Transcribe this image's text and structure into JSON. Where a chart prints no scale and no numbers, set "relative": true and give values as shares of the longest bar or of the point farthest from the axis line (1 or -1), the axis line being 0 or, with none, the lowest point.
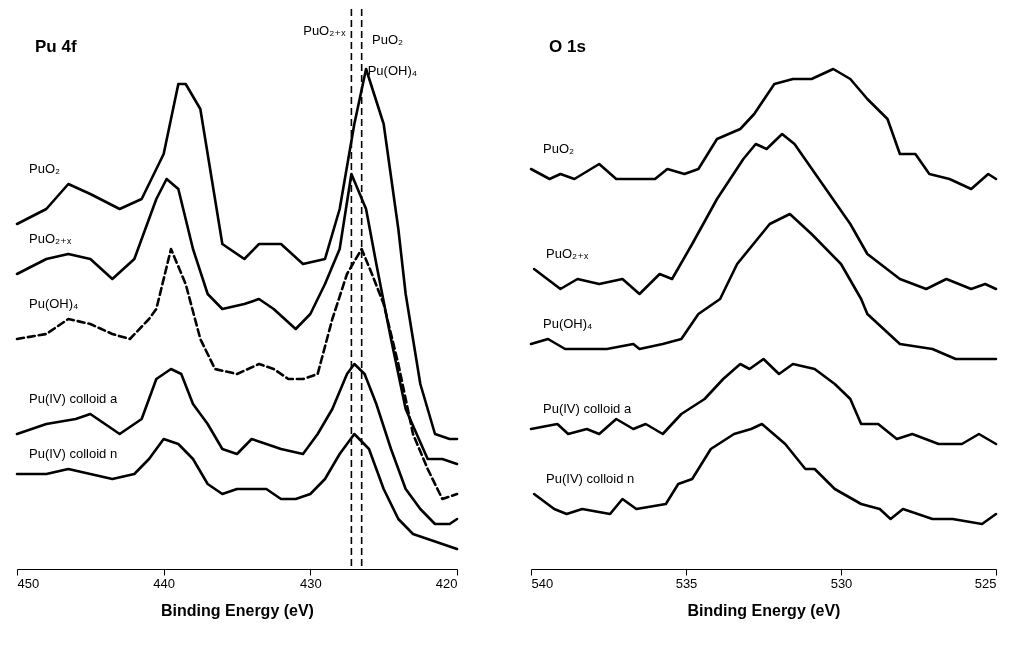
{
  "chart_data": [
    {
      "type": "line",
      "title": "Pu   4f",
      "xlabel": "Binding Energy (eV)",
      "relative": true,
      "xlim": [
        450,
        420
      ],
      "xticks": [
        450,
        440,
        430,
        420
      ],
      "grid": false,
      "legend": false,
      "marker": "none",
      "line_style": "solid",
      "series": [
        {
          "name": "PuO₂",
          "color": "#000000",
          "x": [
            450,
            448,
            446.5,
            445,
            443,
            441.5,
            440,
            439,
            438.5,
            437.5,
            436,
            434.5,
            433.5,
            432,
            430.5,
            429,
            428,
            427,
            426.2,
            425,
            424,
            423.5,
            422.5,
            421.5,
            420.5,
            420
          ],
          "values": [
            0.69,
            0.72,
            0.77,
            0.75,
            0.72,
            0.74,
            0.83,
            0.97,
            0.97,
            0.92,
            0.65,
            0.62,
            0.65,
            0.65,
            0.61,
            0.62,
            0.72,
            0.89,
            1.0,
            0.89,
            0.68,
            0.55,
            0.37,
            0.27,
            0.26,
            0.26
          ]
        },
        {
          "name": "PuO₂₊ₓ",
          "color": "#000000",
          "x": [
            450,
            448,
            446.5,
            445,
            443.5,
            442,
            440.5,
            439.8,
            439,
            438,
            437,
            436,
            434.5,
            433.5,
            432.5,
            431,
            430,
            429,
            428,
            427.2,
            426.2,
            425.5,
            424.5,
            423.5,
            422,
            421,
            420
          ],
          "values": [
            0.59,
            0.62,
            0.63,
            0.62,
            0.58,
            0.62,
            0.74,
            0.78,
            0.76,
            0.64,
            0.55,
            0.52,
            0.53,
            0.54,
            0.52,
            0.48,
            0.51,
            0.57,
            0.64,
            0.79,
            0.72,
            0.61,
            0.46,
            0.32,
            0.22,
            0.22,
            0.21
          ]
        },
        {
          "name": "Pu(OH)₄",
          "color": "#000000",
          "line_style": "dashed",
          "x": [
            450,
            448,
            446.5,
            445,
            443.5,
            442.3,
            441,
            440.5,
            439.5,
            438.5,
            437.5,
            436.5,
            435,
            433.5,
            432.5,
            431.5,
            430.5,
            429.5,
            428.5,
            427.5,
            426.5,
            425.8,
            425,
            424,
            423,
            422,
            421,
            420
          ],
          "values": [
            0.46,
            0.47,
            0.5,
            0.49,
            0.47,
            0.46,
            0.5,
            0.52,
            0.64,
            0.57,
            0.46,
            0.4,
            0.39,
            0.41,
            0.4,
            0.38,
            0.38,
            0.39,
            0.5,
            0.59,
            0.64,
            0.59,
            0.53,
            0.41,
            0.27,
            0.2,
            0.14,
            0.15
          ]
        },
        {
          "name": "Pu(IV) colloid a",
          "color": "#000000",
          "x": [
            450,
            448,
            446,
            445,
            444,
            443,
            441.5,
            440.5,
            439.5,
            438.8,
            438,
            437,
            436,
            435,
            434,
            433,
            432,
            430.5,
            429.5,
            428.5,
            427.5,
            427,
            426.3,
            425.5,
            424.5,
            423.5,
            422.5,
            421.5,
            420.5,
            420
          ],
          "values": [
            0.27,
            0.29,
            0.3,
            0.31,
            0.29,
            0.27,
            0.3,
            0.38,
            0.4,
            0.39,
            0.33,
            0.29,
            0.24,
            0.23,
            0.26,
            0.25,
            0.24,
            0.23,
            0.27,
            0.32,
            0.39,
            0.41,
            0.39,
            0.33,
            0.24,
            0.16,
            0.12,
            0.09,
            0.09,
            0.1
          ]
        },
        {
          "name": "Pu(IV) colloid n",
          "color": "#000000",
          "x": [
            450,
            448,
            446.5,
            445,
            443.5,
            442,
            441,
            440,
            439,
            438,
            437,
            436,
            435,
            434,
            433,
            432,
            431,
            430,
            429,
            428,
            427,
            426,
            425,
            424,
            423,
            422,
            421,
            420
          ],
          "values": [
            0.19,
            0.19,
            0.2,
            0.19,
            0.18,
            0.19,
            0.22,
            0.26,
            0.25,
            0.22,
            0.17,
            0.15,
            0.16,
            0.16,
            0.16,
            0.14,
            0.14,
            0.15,
            0.18,
            0.23,
            0.27,
            0.24,
            0.16,
            0.1,
            0.07,
            0.06,
            0.05,
            0.04
          ]
        }
      ],
      "ref_lines": [
        {
          "axis": "x",
          "value": 427.2,
          "label": "PuO₂₊ₓ",
          "line_style": "dashed",
          "color": "#000000"
        },
        {
          "axis": "x",
          "value": 426.5,
          "label": "Pu(OH)₄",
          "line_style": "dashed",
          "color": "#000000"
        }
      ],
      "annotations": [
        {
          "text": "PuO₂",
          "x": 426.2,
          "y": 1.0
        }
      ]
    },
    {
      "type": "line",
      "title": "O   1s",
      "xlabel": "Binding Energy (eV)",
      "relative": true,
      "xlim": [
        540,
        525
      ],
      "xticks": [
        540,
        535,
        530,
        525
      ],
      "grid": false,
      "legend": false,
      "marker": "none",
      "line_style": "solid",
      "series": [
        {
          "name": "PuO₂",
          "color": "#000000",
          "x": [
            540,
            539.4,
            539.05,
            538.6,
            537.8,
            537.25,
            536.5,
            536,
            535.6,
            535.05,
            534.6,
            534,
            533.25,
            532.8,
            532.15,
            531.55,
            530.95,
            530.25,
            529.7,
            529.15,
            528.5,
            528.1,
            527.6,
            527.15,
            526.5,
            525.8,
            525.25,
            525
          ],
          "values": [
            0.8,
            0.78,
            0.79,
            0.78,
            0.81,
            0.78,
            0.78,
            0.78,
            0.8,
            0.79,
            0.8,
            0.86,
            0.88,
            0.91,
            0.97,
            0.98,
            0.98,
            1.0,
            0.98,
            0.94,
            0.9,
            0.83,
            0.83,
            0.79,
            0.78,
            0.76,
            0.79,
            0.78
          ]
        },
        {
          "name": "PuO₂₊ₓ",
          "color": "#000000",
          "x": [
            539.9,
            539.05,
            538.5,
            537.8,
            537.05,
            536.5,
            535.85,
            535.45,
            534.8,
            534,
            533.15,
            532.75,
            532.4,
            531.9,
            531.5,
            530.6,
            529.7,
            529.15,
            528.1,
            527.25,
            526.6,
            525.8,
            525.35,
            525
          ],
          "values": [
            0.6,
            0.56,
            0.58,
            0.57,
            0.58,
            0.55,
            0.59,
            0.58,
            0.65,
            0.74,
            0.82,
            0.85,
            0.84,
            0.87,
            0.85,
            0.77,
            0.69,
            0.63,
            0.58,
            0.56,
            0.58,
            0.56,
            0.57,
            0.56
          ]
        },
        {
          "name": "Pu(OH)₄",
          "color": "#000000",
          "x": [
            540,
            539.45,
            538.9,
            537.55,
            536.7,
            536.5,
            535.75,
            535.15,
            534.6,
            533.9,
            533.35,
            532.3,
            531.65,
            530.95,
            530,
            529.35,
            529.15,
            528.1,
            527.05,
            526.3,
            525
          ],
          "values": [
            0.45,
            0.46,
            0.44,
            0.44,
            0.45,
            0.44,
            0.45,
            0.46,
            0.51,
            0.54,
            0.61,
            0.69,
            0.71,
            0.67,
            0.61,
            0.54,
            0.51,
            0.45,
            0.44,
            0.42,
            0.42
          ]
        },
        {
          "name": "Pu(IV) colloid a",
          "color": "#000000",
          "x": [
            540,
            539.15,
            538.8,
            538.2,
            537.8,
            537.25,
            536.7,
            536.3,
            535.75,
            535.15,
            534.4,
            533.8,
            533.25,
            532.95,
            532.5,
            532,
            531.55,
            530.85,
            530.2,
            529.7,
            529.35,
            528.8,
            528.2,
            527.7,
            526.85,
            526.1,
            525.55,
            525
          ],
          "values": [
            0.28,
            0.29,
            0.27,
            0.28,
            0.27,
            0.3,
            0.28,
            0.29,
            0.27,
            0.31,
            0.34,
            0.38,
            0.41,
            0.4,
            0.42,
            0.39,
            0.41,
            0.4,
            0.37,
            0.34,
            0.29,
            0.29,
            0.26,
            0.27,
            0.25,
            0.25,
            0.27,
            0.25
          ]
        },
        {
          "name": "Pu(IV) colloid n",
          "color": "#000000",
          "x": [
            539.9,
            539.25,
            538.85,
            538.35,
            537.45,
            537.05,
            536.6,
            535.65,
            535.25,
            534.8,
            534.2,
            533.45,
            532.9,
            532.55,
            531.8,
            531.15,
            530.85,
            530.2,
            529.35,
            528.75,
            528.4,
            528,
            527.05,
            526.4,
            525.45,
            525
          ],
          "values": [
            0.15,
            0.12,
            0.11,
            0.12,
            0.11,
            0.14,
            0.12,
            0.13,
            0.17,
            0.18,
            0.24,
            0.27,
            0.28,
            0.29,
            0.25,
            0.2,
            0.2,
            0.16,
            0.13,
            0.12,
            0.1,
            0.12,
            0.1,
            0.1,
            0.09,
            0.11
          ]
        }
      ]
    }
  ]
}
